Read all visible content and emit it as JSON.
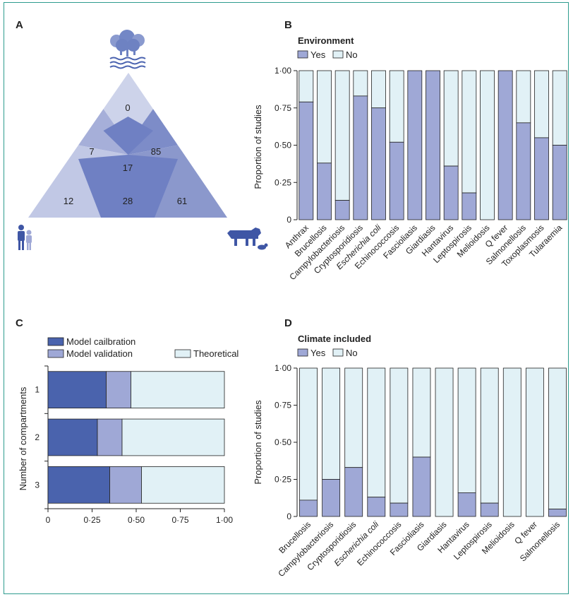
{
  "panels": {
    "a": "A",
    "b": "B",
    "c": "C",
    "d": "D"
  },
  "colors": {
    "frame": "#2e9c8e",
    "yes": "#9fa8d6",
    "no": "#e1f1f6",
    "calibration": "#4a63ad",
    "validation": "#9fa8d6",
    "theoretical": "#e1f1f6",
    "icon": "#3f56a5"
  },
  "triangle": {
    "values": [
      "0",
      "7",
      "85",
      "17",
      "12",
      "28",
      "61"
    ],
    "icons": [
      "environment-icon",
      "human-icon",
      "animal-icon"
    ],
    "colors": {
      "top": "#cdd3ea",
      "mid_left": "#a6afd9",
      "mid_right": "#7d8cc8",
      "bottom_left": "#c1c8e5",
      "bottom_mid": "#6f80c3",
      "bottom_right": "#8b98cc"
    }
  },
  "chart_data": [
    {
      "id": "B",
      "type": "bar",
      "stacked": true,
      "legend_title": "Environment",
      "legend": [
        "Yes",
        "No"
      ],
      "ylabel": "Proportion of studies",
      "ylim": [
        0,
        1
      ],
      "yticks": [
        "0",
        "0·25",
        "0·50",
        "0·75",
        "1·00"
      ],
      "categories": [
        "Anthrax",
        "Brucellosis",
        "Campylobacteriosis",
        "Cryptosporidiosis",
        "Escherichia coli",
        "Echinococcosis",
        "Fascioliasis",
        "Giardiasis",
        "Hantavirus",
        "Leptospirosis",
        "Melioidosis",
        "Q fever",
        "Salmonellosis",
        "Toxoplasmosis",
        "Tularaemia"
      ],
      "italic_categories": [
        "Escherichia coli"
      ],
      "series": [
        {
          "name": "Yes",
          "values": [
            0.79,
            0.38,
            0.13,
            0.83,
            0.75,
            0.52,
            1.0,
            1.0,
            0.36,
            0.18,
            0.0,
            1.0,
            0.65,
            0.55,
            0.5
          ]
        },
        {
          "name": "No",
          "values": [
            0.21,
            0.62,
            0.87,
            0.17,
            0.25,
            0.48,
            0.0,
            0.0,
            0.64,
            0.82,
            1.0,
            0.0,
            0.35,
            0.45,
            0.5
          ]
        }
      ]
    },
    {
      "id": "C",
      "type": "bar",
      "orientation": "horizontal",
      "stacked": true,
      "legend": [
        "Model cailbration",
        "Model validation",
        "Theoretical"
      ],
      "ylabel": "Number of compartments",
      "xlim": [
        0,
        1
      ],
      "xticks": [
        "0",
        "0·25",
        "0·50",
        "0·75",
        "1·00"
      ],
      "categories": [
        "1",
        "2",
        "3"
      ],
      "series": [
        {
          "name": "Model cailbration",
          "values": [
            0.33,
            0.28,
            0.35
          ]
        },
        {
          "name": "Model validation",
          "values": [
            0.14,
            0.14,
            0.18
          ]
        },
        {
          "name": "Theoretical",
          "values": [
            0.53,
            0.58,
            0.47
          ]
        }
      ]
    },
    {
      "id": "D",
      "type": "bar",
      "stacked": true,
      "legend_title": "Climate included",
      "legend": [
        "Yes",
        "No"
      ],
      "ylabel": "Proportion of studies",
      "ylim": [
        0,
        1
      ],
      "yticks": [
        "0",
        "0·25",
        "0·50",
        "0·75",
        "1·00"
      ],
      "categories": [
        "Brucellosis",
        "Campylobacteriosis",
        "Cryptosporidiosis",
        "Escherichia coli",
        "Echinococcosis",
        "Fascioliasis",
        "Giardiasis",
        "Hantavirus",
        "Leptospirosis",
        "Melioidosis",
        "Q fever",
        "Salmonellosis"
      ],
      "italic_categories": [
        "Escherichia coli"
      ],
      "series": [
        {
          "name": "Yes",
          "values": [
            0.11,
            0.25,
            0.33,
            0.13,
            0.09,
            0.4,
            0.0,
            0.16,
            0.09,
            0.0,
            0.0,
            0.05
          ]
        },
        {
          "name": "No",
          "values": [
            0.89,
            0.75,
            0.67,
            0.87,
            0.91,
            0.6,
            1.0,
            0.84,
            0.91,
            1.0,
            1.0,
            0.95
          ]
        }
      ]
    }
  ]
}
